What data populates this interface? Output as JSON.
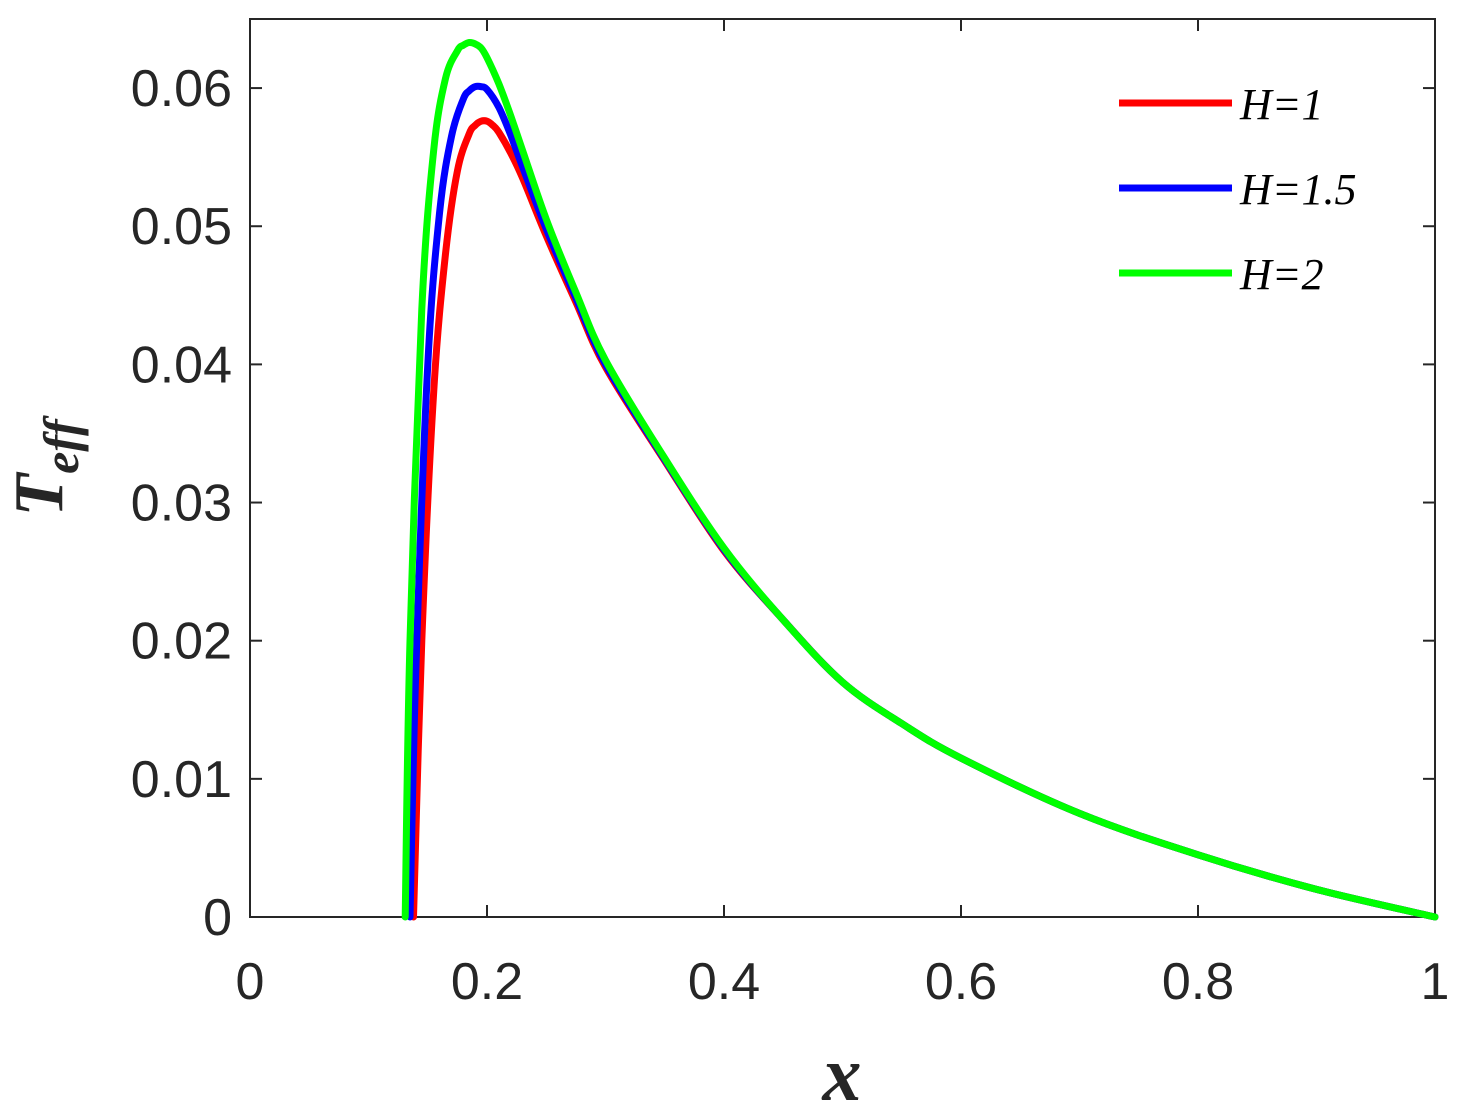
{
  "chart_data": {
    "type": "line",
    "xlabel": "x",
    "ylabel_main": "T",
    "ylabel_sub": "eff",
    "xlim": [
      0,
      1
    ],
    "ylim": [
      0,
      0.065
    ],
    "xticks": [
      0,
      0.2,
      0.4,
      0.6,
      0.8,
      1
    ],
    "xtick_labels": [
      "0",
      "0.2",
      "0.4",
      "0.6",
      "0.8",
      "1"
    ],
    "yticks": [
      0,
      0.01,
      0.02,
      0.03,
      0.04,
      0.05,
      0.06
    ],
    "ytick_labels": [
      "0",
      "0.01",
      "0.02",
      "0.03",
      "0.04",
      "0.05",
      "0.06"
    ],
    "grid": false,
    "legend_position": "top-right",
    "series": [
      {
        "name": "H=1",
        "color": "#ff0000",
        "x": [
          0.138,
          0.145,
          0.155,
          0.165,
          0.175,
          0.185,
          0.19,
          0.195,
          0.2,
          0.205,
          0.21,
          0.22,
          0.23,
          0.25,
          0.275,
          0.3,
          0.35,
          0.4,
          0.45,
          0.5,
          0.55,
          0.6,
          0.7,
          0.8,
          0.9,
          1.0
        ],
        "y": [
          0.0,
          0.02,
          0.038,
          0.048,
          0.054,
          0.0567,
          0.0573,
          0.0576,
          0.0576,
          0.0573,
          0.0568,
          0.0553,
          0.0535,
          0.0493,
          0.0445,
          0.0398,
          0.033,
          0.0265,
          0.0215,
          0.017,
          0.014,
          0.0115,
          0.0075,
          0.0045,
          0.002,
          0.0
        ]
      },
      {
        "name": "H=1.5",
        "color": "#0000ff",
        "x": [
          0.135,
          0.14,
          0.15,
          0.16,
          0.17,
          0.18,
          0.185,
          0.19,
          0.195,
          0.2,
          0.21,
          0.22,
          0.23,
          0.25,
          0.275,
          0.3,
          0.35,
          0.4,
          0.45,
          0.5,
          0.55,
          0.6,
          0.7,
          0.8,
          0.9,
          1.0
        ],
        "y": [
          0.0,
          0.018,
          0.04,
          0.051,
          0.0565,
          0.0592,
          0.0598,
          0.0601,
          0.0601,
          0.0599,
          0.0586,
          0.0566,
          0.0543,
          0.0498,
          0.0448,
          0.04,
          0.0331,
          0.0266,
          0.0215,
          0.017,
          0.014,
          0.0115,
          0.0075,
          0.0045,
          0.002,
          0.0
        ]
      },
      {
        "name": "H=2",
        "color": "#00ff00",
        "x": [
          0.131,
          0.135,
          0.145,
          0.155,
          0.165,
          0.175,
          0.18,
          0.185,
          0.19,
          0.195,
          0.2,
          0.21,
          0.22,
          0.23,
          0.25,
          0.275,
          0.3,
          0.35,
          0.4,
          0.45,
          0.5,
          0.55,
          0.6,
          0.7,
          0.8,
          0.9,
          1.0
        ],
        "y": [
          0.0,
          0.02,
          0.044,
          0.0555,
          0.0607,
          0.0627,
          0.0631,
          0.0633,
          0.0632,
          0.0629,
          0.0622,
          0.0603,
          0.058,
          0.0555,
          0.0505,
          0.0452,
          0.0403,
          0.0332,
          0.0267,
          0.0215,
          0.017,
          0.014,
          0.0115,
          0.0075,
          0.0045,
          0.002,
          0.0
        ]
      }
    ]
  }
}
